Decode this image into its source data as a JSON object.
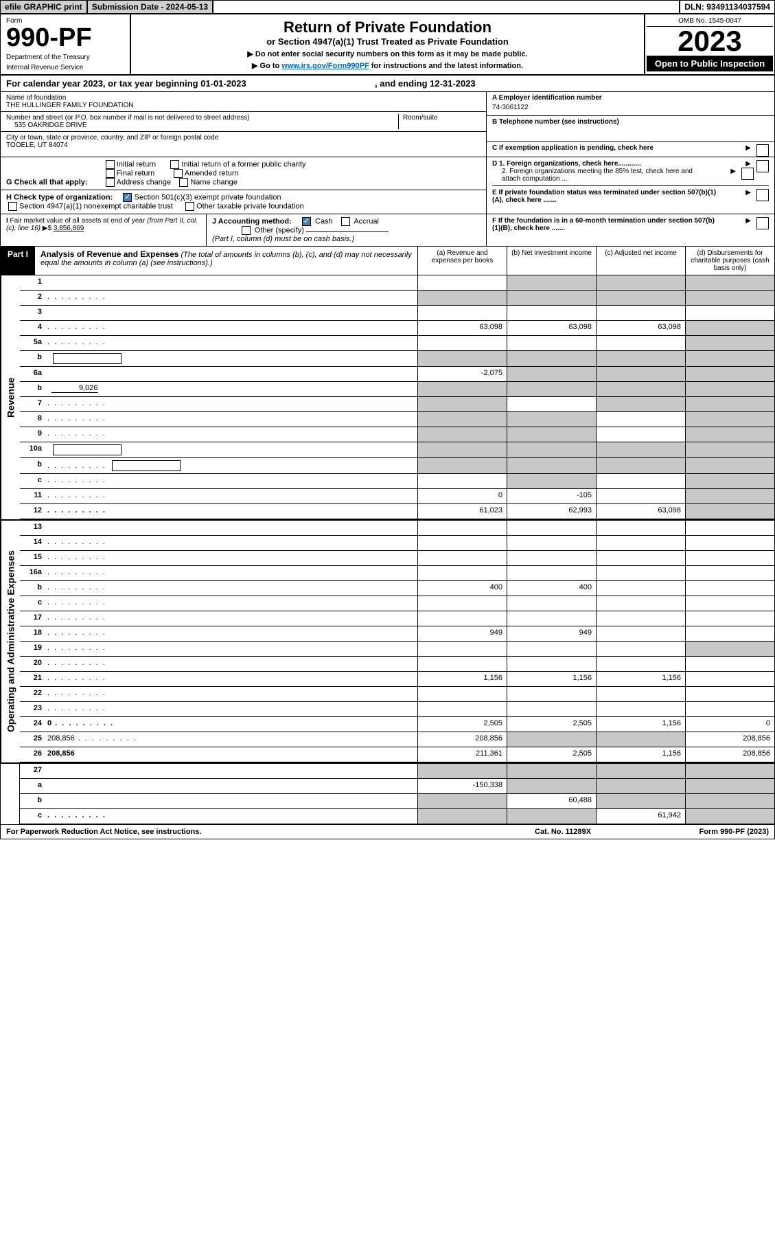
{
  "top": {
    "efile": "efile GRAPHIC print",
    "subdate_label": "Submission Date - 2024-05-13",
    "dln": "DLN: 93491134037594"
  },
  "header": {
    "form_label": "Form",
    "form_number": "990-PF",
    "dept1": "Department of the Treasury",
    "dept2": "Internal Revenue Service",
    "title": "Return of Private Foundation",
    "subtitle": "or Section 4947(a)(1) Trust Treated as Private Foundation",
    "instr1": "▶ Do not enter social security numbers on this form as it may be made public.",
    "instr2_pre": "▶ Go to ",
    "instr2_link": "www.irs.gov/Form990PF",
    "instr2_post": " for instructions and the latest information.",
    "omb": "OMB No. 1545-0047",
    "year": "2023",
    "inspection": "Open to Public Inspection"
  },
  "period": {
    "text_pre": "For calendar year 2023, or tax year beginning ",
    "begin": "01-01-2023",
    "mid": " , and ending ",
    "end": "12-31-2023"
  },
  "foundation": {
    "name_label": "Name of foundation",
    "name": "THE HULLINGER FAMILY FOUNDATION",
    "street_label": "Number and street (or P.O. box number if mail is not delivered to street address)",
    "street": "535 OAKRIDGE DRIVE",
    "room_label": "Room/suite",
    "city_label": "City or town, state or province, country, and ZIP or foreign postal code",
    "city": "TOOELE, UT  84074",
    "ein_label": "A Employer identification number",
    "ein": "74-3061122",
    "phone_label": "B Telephone number (see instructions)",
    "pending_label": "C If exemption application is pending, check here"
  },
  "checks": {
    "g_label": "G Check all that apply:",
    "initial": "Initial return",
    "initial_former": "Initial return of a former public charity",
    "final": "Final return",
    "amended": "Amended return",
    "address": "Address change",
    "name_change": "Name change",
    "h_label": "H Check type of organization:",
    "h_501c3": "Section 501(c)(3) exempt private foundation",
    "h_4947": "Section 4947(a)(1) nonexempt charitable trust",
    "h_other": "Other taxable private foundation",
    "d1": "D 1. Foreign organizations, check here............",
    "d2": "2. Foreign organizations meeting the 85% test, check here and attach computation ...",
    "e": "E  If private foundation status was terminated under section 507(b)(1)(A), check here .......",
    "f": "F  If the foundation is in a 60-month termination under section 507(b)(1)(B), check here ......."
  },
  "method": {
    "i_label": "I Fair market value of all assets at end of year (from Part II, col. (c), line 16) ▶$ ",
    "i_value": "3,856,869",
    "j_label": "J Accounting method:",
    "j_cash": "Cash",
    "j_accrual": "Accrual",
    "j_other": "Other (specify)",
    "j_note": "(Part I, column (d) must be on cash basis.)"
  },
  "part1": {
    "label": "Part I",
    "title": "Analysis of Revenue and Expenses",
    "title_note": " (The total of amounts in columns (b), (c), and (d) may not necessarily equal the amounts in column (a) (see instructions).)",
    "col_a": "(a)  Revenue and expenses per books",
    "col_b": "(b)  Net investment income",
    "col_c": "(c)  Adjusted net income",
    "col_d": "(d)  Disbursements for charitable purposes (cash basis only)"
  },
  "sections": {
    "revenue": "Revenue",
    "expenses": "Operating and Administrative Expenses"
  },
  "rows": [
    {
      "n": "1",
      "d": "",
      "a": "",
      "b": "",
      "c": "",
      "sa": false,
      "sb": true,
      "sc": true,
      "sd": true
    },
    {
      "n": "2",
      "d": "",
      "a": "",
      "b": "",
      "c": "",
      "sa": true,
      "sb": true,
      "sc": true,
      "sd": true,
      "dots": true
    },
    {
      "n": "3",
      "d": "",
      "a": "",
      "b": "",
      "c": ""
    },
    {
      "n": "4",
      "d": "",
      "a": "63,098",
      "b": "63,098",
      "c": "63,098",
      "dots": true,
      "sd": true
    },
    {
      "n": "5a",
      "d": "",
      "a": "",
      "b": "",
      "c": "",
      "dots": true,
      "sd": true
    },
    {
      "n": "b",
      "d": "",
      "a": "",
      "b": "",
      "c": "",
      "sa": true,
      "sb": true,
      "sc": true,
      "sd": true,
      "box": true
    },
    {
      "n": "6a",
      "d": "",
      "a": "-2,075",
      "b": "",
      "c": "",
      "sb": true,
      "sc": true,
      "sd": true
    },
    {
      "n": "b",
      "d": "",
      "a": "",
      "b": "",
      "c": "",
      "sa": true,
      "sb": true,
      "sc": true,
      "sd": true,
      "inline_val": "9,026"
    },
    {
      "n": "7",
      "d": "",
      "a": "",
      "b": "",
      "c": "",
      "dots": true,
      "sa": true,
      "sc": true,
      "sd": true
    },
    {
      "n": "8",
      "d": "",
      "a": "",
      "b": "",
      "c": "",
      "dots": true,
      "sa": true,
      "sb": true,
      "sd": true
    },
    {
      "n": "9",
      "d": "",
      "a": "",
      "b": "",
      "c": "",
      "dots": true,
      "sa": true,
      "sb": true,
      "sd": true
    },
    {
      "n": "10a",
      "d": "",
      "a": "",
      "b": "",
      "c": "",
      "sa": true,
      "sb": true,
      "sc": true,
      "sd": true,
      "box": true
    },
    {
      "n": "b",
      "d": "",
      "a": "",
      "b": "",
      "c": "",
      "dots": true,
      "sa": true,
      "sb": true,
      "sc": true,
      "sd": true,
      "box": true
    },
    {
      "n": "c",
      "d": "",
      "a": "",
      "b": "",
      "c": "",
      "dots": true,
      "sb": true,
      "sd": true
    },
    {
      "n": "11",
      "d": "",
      "a": "0",
      "b": "-105",
      "c": "",
      "dots": true,
      "sd": true
    },
    {
      "n": "12",
      "d": "",
      "a": "61,023",
      "b": "62,993",
      "c": "63,098",
      "dots": true,
      "bold": true,
      "sd": true
    }
  ],
  "exp_rows": [
    {
      "n": "13",
      "d": "",
      "a": "",
      "b": "",
      "c": ""
    },
    {
      "n": "14",
      "d": "",
      "a": "",
      "b": "",
      "c": "",
      "dots": true
    },
    {
      "n": "15",
      "d": "",
      "a": "",
      "b": "",
      "c": "",
      "dots": true
    },
    {
      "n": "16a",
      "d": "",
      "a": "",
      "b": "",
      "c": "",
      "dots": true
    },
    {
      "n": "b",
      "d": "",
      "a": "400",
      "b": "400",
      "c": "",
      "dots": true
    },
    {
      "n": "c",
      "d": "",
      "a": "",
      "b": "",
      "c": "",
      "dots": true
    },
    {
      "n": "17",
      "d": "",
      "a": "",
      "b": "",
      "c": "",
      "dots": true
    },
    {
      "n": "18",
      "d": "",
      "a": "949",
      "b": "949",
      "c": "",
      "dots": true
    },
    {
      "n": "19",
      "d": "",
      "a": "",
      "b": "",
      "c": "",
      "dots": true,
      "sd": true
    },
    {
      "n": "20",
      "d": "",
      "a": "",
      "b": "",
      "c": "",
      "dots": true
    },
    {
      "n": "21",
      "d": "",
      "a": "1,156",
      "b": "1,156",
      "c": "1,156",
      "dots": true
    },
    {
      "n": "22",
      "d": "",
      "a": "",
      "b": "",
      "c": "",
      "dots": true
    },
    {
      "n": "23",
      "d": "",
      "a": "",
      "b": "",
      "c": "",
      "dots": true
    },
    {
      "n": "24",
      "d": "0",
      "a": "2,505",
      "b": "2,505",
      "c": "1,156",
      "dots": true,
      "bold": true
    },
    {
      "n": "25",
      "d": "208,856",
      "a": "208,856",
      "b": "",
      "c": "",
      "dots": true,
      "sb": true,
      "sc": true
    },
    {
      "n": "26",
      "d": "208,856",
      "a": "211,361",
      "b": "2,505",
      "c": "1,156",
      "bold": true
    }
  ],
  "final_rows": [
    {
      "n": "27",
      "d": "",
      "a": "",
      "b": "",
      "c": "",
      "sa": true,
      "sb": true,
      "sc": true,
      "sd": true
    },
    {
      "n": "a",
      "d": "",
      "a": "-150,338",
      "b": "",
      "c": "",
      "bold": true,
      "sb": true,
      "sc": true,
      "sd": true
    },
    {
      "n": "b",
      "d": "",
      "a": "",
      "b": "60,488",
      "c": "",
      "bold": true,
      "sa": true,
      "sc": true,
      "sd": true
    },
    {
      "n": "c",
      "d": "",
      "a": "",
      "b": "",
      "c": "61,942",
      "bold": true,
      "dots": true,
      "sa": true,
      "sb": true,
      "sd": true
    }
  ],
  "footer": {
    "left": "For Paperwork Reduction Act Notice, see instructions.",
    "mid": "Cat. No. 11289X",
    "right": "Form 990-PF (2023)"
  }
}
